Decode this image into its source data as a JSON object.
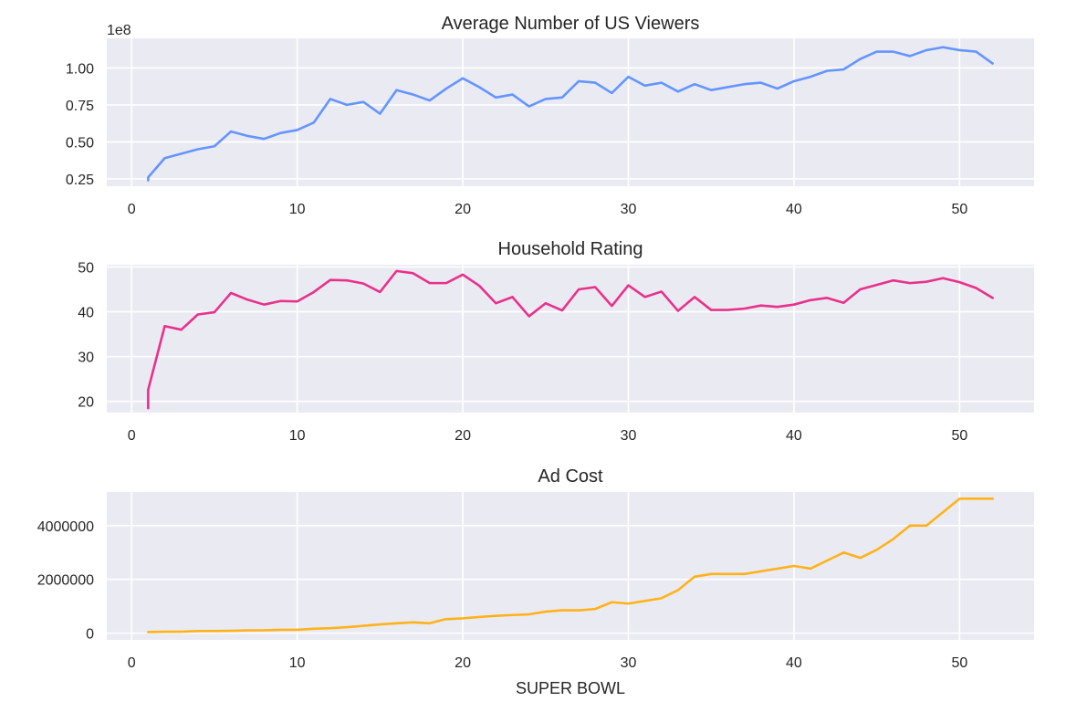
{
  "figure": {
    "xlabel": "SUPER BOWL"
  },
  "chart_data": [
    {
      "type": "line",
      "title": "Average Number of US Viewers",
      "xlabel": "",
      "ylabel": "",
      "y_offset_label": "1e8",
      "color": "#6495ff",
      "xlim": [
        -1.5,
        54.5
      ],
      "ylim": [
        0.2,
        1.2
      ],
      "xticks": [
        0,
        10,
        20,
        30,
        40,
        50
      ],
      "xtick_labels": [
        "0",
        "10",
        "20",
        "30",
        "40",
        "50"
      ],
      "yticks": [
        0.25,
        0.5,
        0.75,
        1.0
      ],
      "ytick_labels": [
        "0.25",
        "0.50",
        "0.75",
        "1.00"
      ],
      "x": [
        1,
        1,
        2,
        3,
        4,
        5,
        6,
        7,
        8,
        9,
        10,
        11,
        12,
        13,
        14,
        15,
        16,
        17,
        18,
        19,
        20,
        21,
        22,
        23,
        24,
        25,
        26,
        27,
        28,
        29,
        30,
        31,
        32,
        33,
        34,
        35,
        36,
        37,
        38,
        39,
        40,
        41,
        42,
        43,
        44,
        45,
        46,
        47,
        48,
        49,
        50,
        51,
        52
      ],
      "values": [
        0.24,
        0.26,
        0.39,
        0.42,
        0.45,
        0.47,
        0.57,
        0.54,
        0.52,
        0.56,
        0.58,
        0.63,
        0.79,
        0.75,
        0.77,
        0.69,
        0.85,
        0.82,
        0.78,
        0.86,
        0.93,
        0.87,
        0.8,
        0.82,
        0.74,
        0.79,
        0.8,
        0.91,
        0.9,
        0.83,
        0.94,
        0.88,
        0.9,
        0.84,
        0.89,
        0.85,
        0.87,
        0.89,
        0.9,
        0.86,
        0.91,
        0.94,
        0.98,
        0.99,
        1.06,
        1.11,
        1.11,
        1.08,
        1.12,
        1.14,
        1.12,
        1.11,
        1.03
      ]
    },
    {
      "type": "line",
      "title": "Household Rating",
      "xlabel": "",
      "ylabel": "",
      "color": "#e8318b",
      "xlim": [
        -1.5,
        54.5
      ],
      "ylim": [
        17.5,
        50.5
      ],
      "xticks": [
        0,
        10,
        20,
        30,
        40,
        50
      ],
      "xtick_labels": [
        "0",
        "10",
        "20",
        "30",
        "40",
        "50"
      ],
      "yticks": [
        20,
        30,
        40,
        50
      ],
      "ytick_labels": [
        "20",
        "30",
        "40",
        "50"
      ],
      "x": [
        1,
        1,
        2,
        3,
        4,
        5,
        6,
        7,
        8,
        9,
        10,
        11,
        12,
        13,
        14,
        15,
        16,
        17,
        18,
        19,
        20,
        21,
        22,
        23,
        24,
        25,
        26,
        27,
        28,
        29,
        30,
        31,
        32,
        33,
        34,
        35,
        36,
        37,
        38,
        39,
        40,
        41,
        42,
        43,
        44,
        45,
        46,
        47,
        48,
        49,
        50,
        51,
        52
      ],
      "values": [
        18.5,
        22.6,
        36.8,
        36.0,
        39.4,
        39.9,
        44.2,
        42.7,
        41.6,
        42.4,
        42.3,
        44.4,
        47.1,
        47.0,
        46.3,
        44.4,
        49.1,
        48.6,
        46.4,
        46.4,
        48.3,
        45.8,
        41.9,
        43.3,
        39.0,
        41.9,
        40.3,
        45.0,
        45.5,
        41.3,
        45.9,
        43.3,
        44.5,
        40.2,
        43.3,
        40.4,
        40.4,
        40.7,
        41.4,
        41.1,
        41.6,
        42.6,
        43.1,
        42.0,
        45.0,
        46.0,
        47.0,
        46.4,
        46.7,
        47.5,
        46.6,
        45.3,
        43.1
      ]
    },
    {
      "type": "line",
      "title": "Ad Cost",
      "xlabel": "SUPER BOWL",
      "ylabel": "",
      "color": "#ffb21a",
      "xlim": [
        -1.5,
        54.5
      ],
      "ylim": [
        -250000,
        5250000
      ],
      "xticks": [
        0,
        10,
        20,
        30,
        40,
        50
      ],
      "xtick_labels": [
        "0",
        "10",
        "20",
        "30",
        "40",
        "50"
      ],
      "yticks": [
        0,
        2000000,
        4000000
      ],
      "ytick_labels": [
        "0",
        "2000000",
        "4000000"
      ],
      "x": [
        1,
        2,
        3,
        4,
        5,
        6,
        7,
        8,
        9,
        10,
        11,
        12,
        13,
        14,
        15,
        16,
        17,
        18,
        19,
        20,
        21,
        22,
        23,
        24,
        25,
        26,
        27,
        28,
        29,
        30,
        31,
        32,
        33,
        34,
        35,
        36,
        37,
        38,
        39,
        40,
        41,
        42,
        43,
        44,
        45,
        46,
        47,
        48,
        49,
        50,
        51,
        52
      ],
      "values": [
        40000,
        54000,
        55000,
        78000,
        78000,
        86000,
        103000,
        107000,
        125000,
        125000,
        162000,
        185000,
        222000,
        275000,
        324000,
        368000,
        400000,
        368000,
        525000,
        550000,
        600000,
        645000,
        675000,
        700000,
        800000,
        850000,
        850000,
        900000,
        1150000,
        1100000,
        1200000,
        1300000,
        1600000,
        2100000,
        2200000,
        2200000,
        2200000,
        2300000,
        2400000,
        2500000,
        2400000,
        2700000,
        3000000,
        2800000,
        3100000,
        3500000,
        4000000,
        4000000,
        4500000,
        5000000,
        5000000,
        5000000
      ]
    }
  ]
}
